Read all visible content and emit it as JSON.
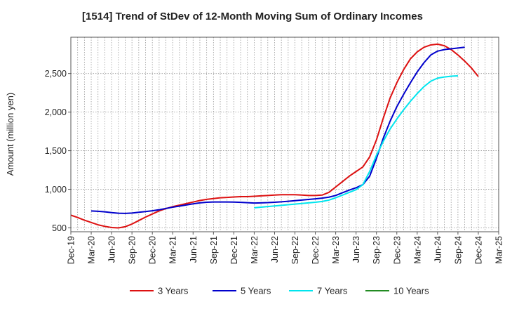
{
  "chart_data": {
    "type": "line",
    "title": "[1514]  Trend of StDev of 12-Month Moving Sum of Ordinary Incomes",
    "xlabel": "",
    "ylabel": "Amount (million yen)",
    "ylim": [
      450,
      2970
    ],
    "yticks": [
      500,
      1000,
      1500,
      2000,
      2500
    ],
    "ytick_labels": [
      "500",
      "1,000",
      "1,500",
      "2,000",
      "2,500"
    ],
    "x_months": [
      "Dec-19",
      "Jan-20",
      "Feb-20",
      "Mar-20",
      "Apr-20",
      "May-20",
      "Jun-20",
      "Jul-20",
      "Aug-20",
      "Sep-20",
      "Oct-20",
      "Nov-20",
      "Dec-20",
      "Jan-21",
      "Feb-21",
      "Mar-21",
      "Apr-21",
      "May-21",
      "Jun-21",
      "Jul-21",
      "Aug-21",
      "Sep-21",
      "Oct-21",
      "Nov-21",
      "Dec-21",
      "Jan-22",
      "Feb-22",
      "Mar-22",
      "Apr-22",
      "May-22",
      "Jun-22",
      "Jul-22",
      "Aug-22",
      "Sep-22",
      "Oct-22",
      "Nov-22",
      "Dec-22",
      "Jan-23",
      "Feb-23",
      "Mar-23",
      "Apr-23",
      "May-23",
      "Jun-23",
      "Jul-23",
      "Aug-23",
      "Sep-23",
      "Oct-23",
      "Nov-23",
      "Dec-23",
      "Jan-24",
      "Feb-24",
      "Mar-24",
      "Apr-24",
      "May-24",
      "Jun-24",
      "Jul-24",
      "Aug-24",
      "Sep-24",
      "Oct-24",
      "Nov-24",
      "Dec-24",
      "Jan-25",
      "Feb-25",
      "Mar-25"
    ],
    "xtick_labels": [
      "Dec-19",
      "Mar-20",
      "Jun-20",
      "Sep-20",
      "Dec-20",
      "Mar-21",
      "Jun-21",
      "Sep-21",
      "Dec-21",
      "Mar-22",
      "Jun-22",
      "Sep-22",
      "Dec-22",
      "Mar-23",
      "Jun-23",
      "Sep-23",
      "Dec-23",
      "Mar-24",
      "Jun-24",
      "Sep-24",
      "Dec-24",
      "Mar-25"
    ],
    "grid": true,
    "legend_position": "bottom",
    "series": [
      {
        "name": "3 Years",
        "color": "#dd1111",
        "start": "Dec-19",
        "values": [
          665,
          635,
          600,
          570,
          540,
          520,
          505,
          500,
          515,
          550,
          595,
          640,
          680,
          720,
          750,
          775,
          795,
          815,
          835,
          855,
          870,
          880,
          890,
          895,
          900,
          905,
          905,
          910,
          915,
          920,
          925,
          930,
          930,
          930,
          925,
          920,
          920,
          925,
          960,
          1030,
          1100,
          1170,
          1230,
          1290,
          1420,
          1640,
          1920,
          2180,
          2380,
          2550,
          2690,
          2780,
          2840,
          2870,
          2880,
          2860,
          2810,
          2740,
          2660,
          2570,
          2460
        ]
      },
      {
        "name": "5 Years",
        "color": "#0000cc",
        "start": "Mar-20",
        "values": [
          720,
          715,
          708,
          698,
          690,
          688,
          692,
          702,
          712,
          722,
          735,
          752,
          768,
          782,
          797,
          812,
          824,
          832,
          836,
          836,
          835,
          834,
          831,
          826,
          822,
          824,
          827,
          832,
          838,
          845,
          853,
          860,
          868,
          876,
          886,
          898,
          920,
          955,
          990,
          1020,
          1060,
          1170,
          1400,
          1660,
          1880,
          2070,
          2230,
          2380,
          2520,
          2640,
          2740,
          2790,
          2810,
          2820,
          2830,
          2840
        ]
      },
      {
        "name": "7 Years",
        "color": "#00e5ee",
        "start": "Mar-22",
        "values": [
          760,
          768,
          776,
          784,
          792,
          800,
          808,
          816,
          824,
          832,
          842,
          860,
          890,
          925,
          960,
          995,
          1060,
          1230,
          1440,
          1620,
          1780,
          1910,
          2030,
          2140,
          2240,
          2330,
          2400,
          2440,
          2455,
          2465,
          2470
        ]
      },
      {
        "name": "10 Years",
        "color": "#228b22",
        "start": "Mar-25",
        "values": []
      }
    ]
  }
}
